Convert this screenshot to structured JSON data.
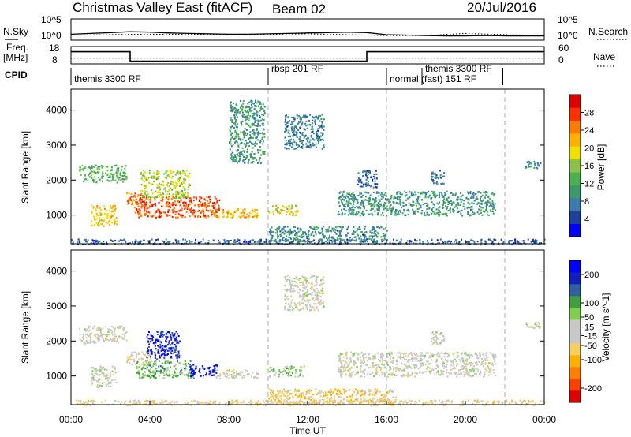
{
  "header": {
    "title": "Christmas Valley East (fitACF)",
    "beam": "Beam 02",
    "date": "20/Jul/2016"
  },
  "panels": {
    "nsky": {
      "left_label": "N.Sky",
      "right_label": "N.Search",
      "left_ticks": [
        "10^5",
        "10^0"
      ],
      "right_ticks": [
        "10^5",
        "10^0"
      ]
    },
    "freq": {
      "left_label_1": "Freq.",
      "left_label_2": "[MHz]",
      "left_ticks": [
        "18",
        "8"
      ],
      "right_label": "Nave",
      "right_ticks": [
        "60",
        "0"
      ]
    },
    "cpid": {
      "label": "CPID"
    }
  },
  "colors": {
    "power": [
      "#0000ff",
      "#1c3f9c",
      "#3d7ab0",
      "#3c9a6a",
      "#4caf50",
      "#8bc34a",
      "#f0e000",
      "#ffb000",
      "#ff7a00",
      "#ff3000",
      "#e00000"
    ],
    "velocity": [
      "#e00000",
      "#ff4000",
      "#ff8000",
      "#ffb000",
      "#f5d060",
      "#c8c8c8",
      "#c8c8c8",
      "#80d050",
      "#40a040",
      "#3060a0",
      "#1020c0",
      "#0000ff"
    ]
  },
  "chart_data": [
    {
      "type": "line",
      "title": "N.Sky / N.Search",
      "x_domain_hours": [
        0,
        24
      ],
      "ylim_log10": [
        0,
        5
      ],
      "series": [
        {
          "name": "N.Sky",
          "style": "solid",
          "points": [
            [
              0,
              1.4
            ],
            [
              1,
              1.6
            ],
            [
              2,
              1.8
            ],
            [
              3,
              2.0
            ],
            [
              4,
              1.9
            ],
            [
              5,
              1.7
            ],
            [
              6,
              1.6
            ],
            [
              7,
              1.5
            ],
            [
              8,
              1.4
            ],
            [
              9,
              1.4
            ],
            [
              10,
              1.5
            ],
            [
              11,
              1.6
            ],
            [
              12,
              1.7
            ],
            [
              13,
              1.8
            ],
            [
              14,
              1.9
            ],
            [
              15,
              1.8
            ],
            [
              16,
              1.3
            ],
            [
              17,
              1.2
            ],
            [
              18,
              1.1
            ],
            [
              19,
              1.0
            ],
            [
              20,
              1.0
            ],
            [
              21,
              1.1
            ],
            [
              22,
              1.0
            ],
            [
              23,
              1.0
            ],
            [
              24,
              1.0
            ]
          ]
        },
        {
          "name": "N.Search",
          "style": "dotted",
          "points": [
            [
              0,
              1.2
            ],
            [
              4,
              1.4
            ],
            [
              8,
              1.3
            ],
            [
              12,
              1.5
            ],
            [
              16,
              1.1
            ],
            [
              18,
              1.1
            ],
            [
              20,
              1.6
            ],
            [
              22,
              1.3
            ],
            [
              24,
              1.1
            ]
          ]
        }
      ]
    },
    {
      "type": "line",
      "title": "Freq. / Nave",
      "x_domain_hours": [
        0,
        24
      ],
      "ylim_freq_mhz": [
        8,
        18
      ],
      "ylim_nave": [
        0,
        60
      ],
      "series": [
        {
          "name": "Freq.",
          "unit": "MHz",
          "style": "solid",
          "points": [
            [
              0,
              15.0
            ],
            [
              3,
              15.0
            ],
            [
              3,
              9.6
            ],
            [
              15,
              9.6
            ],
            [
              15,
              15.0
            ],
            [
              24,
              15.0
            ]
          ]
        },
        {
          "name": "Nave",
          "style": "dotted",
          "points": [
            [
              0,
              20
            ],
            [
              24,
              20
            ]
          ]
        }
      ]
    },
    {
      "type": "table",
      "title": "CPID",
      "x_domain_hours": [
        0,
        24
      ],
      "segments": [
        {
          "start_hour": 0,
          "end_hour": 10,
          "label": "themis 3300 RF"
        },
        {
          "start_hour": 10,
          "end_hour": 16,
          "label": "rbsp 201 RF"
        },
        {
          "start_hour": 16,
          "end_hour": 21.9,
          "label": "normal (fast) 151 RF"
        },
        {
          "start_hour": 17.8,
          "end_hour": 21.9,
          "label": "themis 3300 RF"
        }
      ]
    },
    {
      "type": "heatmap",
      "title": "Power",
      "xlabel": "",
      "ylabel": "Slant Range [km]",
      "x_domain_hours": [
        0,
        24
      ],
      "ylim": [
        180,
        4600
      ],
      "yticks": [
        1000,
        2000,
        3000,
        4000
      ],
      "colorbar": {
        "label": "Power [dB]",
        "range": [
          0,
          32
        ],
        "ticks": [
          4,
          8,
          12,
          16,
          20,
          24,
          28
        ]
      },
      "features": [
        {
          "t0": 0.4,
          "t1": 2.8,
          "r0": 1950,
          "r1": 2450,
          "value": 13
        },
        {
          "t0": 1.0,
          "t1": 2.3,
          "r0": 700,
          "r1": 1300,
          "value": 20
        },
        {
          "t0": 2.8,
          "t1": 3.6,
          "r0": 1300,
          "r1": 1650,
          "value": 26
        },
        {
          "t0": 3.2,
          "t1": 7.5,
          "r0": 950,
          "r1": 1550,
          "value": 27
        },
        {
          "t0": 3.5,
          "t1": 6.0,
          "r0": 1500,
          "r1": 2300,
          "value": 17
        },
        {
          "t0": 7.0,
          "t1": 9.5,
          "r0": 950,
          "r1": 1200,
          "value": 22
        },
        {
          "t0": 8.0,
          "t1": 9.8,
          "r0": 2500,
          "r1": 4300,
          "value": 10
        },
        {
          "t0": 10.0,
          "t1": 11.5,
          "r0": 1000,
          "r1": 1300,
          "value": 18
        },
        {
          "t0": 10.8,
          "t1": 12.8,
          "r0": 2900,
          "r1": 3900,
          "value": 8
        },
        {
          "t0": 13.5,
          "t1": 21.5,
          "r0": 1000,
          "r1": 1700,
          "value": 10
        },
        {
          "t0": 14.5,
          "t1": 15.5,
          "r0": 1800,
          "r1": 2300,
          "value": 6
        },
        {
          "t0": 18.2,
          "t1": 18.9,
          "r0": 1900,
          "r1": 2300,
          "value": 8
        },
        {
          "t0": 23.0,
          "t1": 23.8,
          "r0": 2350,
          "r1": 2550,
          "value": 8
        },
        {
          "t0": 0.0,
          "t1": 24.0,
          "r0": 180,
          "r1": 330,
          "value": 6
        },
        {
          "t0": 10.0,
          "t1": 16.0,
          "r0": 250,
          "r1": 700,
          "value": 9
        }
      ]
    },
    {
      "type": "heatmap",
      "title": "Velocity",
      "xlabel": "Time UT",
      "ylabel": "Slant Range [km]",
      "x_domain_hours": [
        0,
        24
      ],
      "xticks": [
        "00:00",
        "04:00",
        "08:00",
        "12:00",
        "16:00",
        "20:00",
        "00:00"
      ],
      "ylim": [
        180,
        4600
      ],
      "yticks": [
        1000,
        2000,
        3000,
        4000
      ],
      "colorbar": {
        "label": "Velocity [m s^-1]",
        "range": [
          -250,
          250
        ],
        "ticks": [
          -200,
          -100,
          -50,
          -15,
          15,
          50,
          100,
          200
        ]
      },
      "features": [
        {
          "t0": 0.4,
          "t1": 2.8,
          "r0": 1950,
          "r1": 2450,
          "value": 0
        },
        {
          "t0": 1.0,
          "t1": 2.3,
          "r0": 700,
          "r1": 1300,
          "value": 0
        },
        {
          "t0": 2.8,
          "t1": 4.0,
          "r0": 1350,
          "r1": 1700,
          "value": -40
        },
        {
          "t0": 3.3,
          "t1": 6.2,
          "r0": 950,
          "r1": 1450,
          "value": 80
        },
        {
          "t0": 3.8,
          "t1": 5.5,
          "r0": 1500,
          "r1": 2300,
          "value": 200
        },
        {
          "t0": 6.0,
          "t1": 7.4,
          "r0": 1000,
          "r1": 1350,
          "value": 220
        },
        {
          "t0": 7.0,
          "t1": 9.5,
          "r0": 950,
          "r1": 1200,
          "value": 0
        },
        {
          "t0": 10.0,
          "t1": 11.8,
          "r0": 1000,
          "r1": 1300,
          "value": 60
        },
        {
          "t0": 10.8,
          "t1": 12.8,
          "r0": 2900,
          "r1": 3900,
          "value": 0
        },
        {
          "t0": 13.5,
          "t1": 21.5,
          "r0": 1000,
          "r1": 1700,
          "value": 0
        },
        {
          "t0": 18.2,
          "t1": 18.9,
          "r0": 1900,
          "r1": 2300,
          "value": 0
        },
        {
          "t0": 23.0,
          "t1": 23.8,
          "r0": 2350,
          "r1": 2550,
          "value": 0
        },
        {
          "t0": 0.0,
          "t1": 24.0,
          "r0": 180,
          "r1": 330,
          "value": -40
        },
        {
          "t0": 10.0,
          "t1": 16.5,
          "r0": 200,
          "r1": 650,
          "value": -60
        }
      ]
    }
  ]
}
